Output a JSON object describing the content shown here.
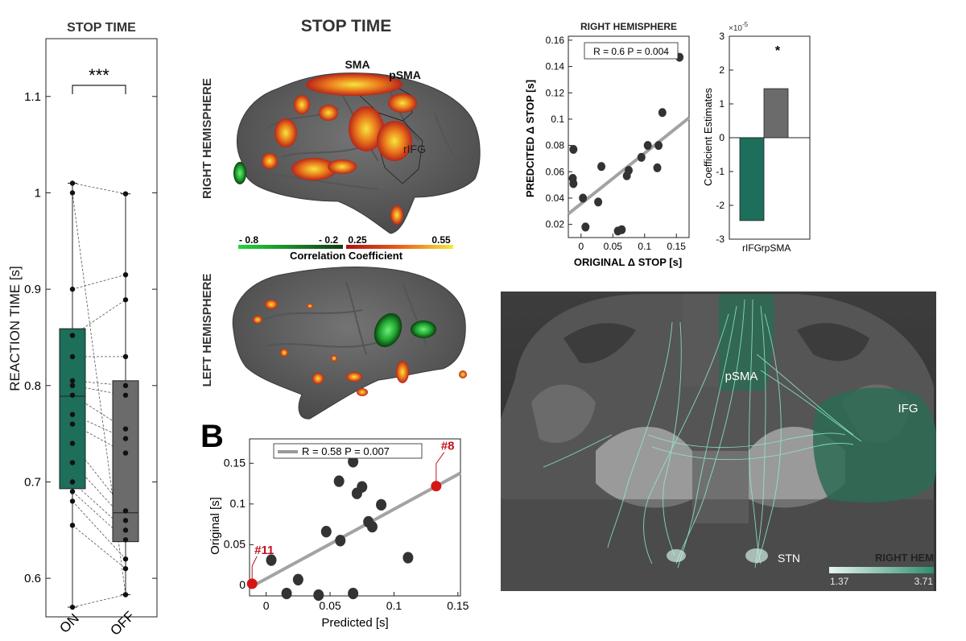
{
  "panelA": {
    "title": "STOP TIME",
    "ylabel": "REACTION TIME [s]",
    "significance": "***",
    "chart_data": {
      "type": "box",
      "title": "STOP TIME",
      "ylabel": "REACTION TIME [s]",
      "ylim": [
        0.56,
        1.16
      ],
      "yticks": [
        0.6,
        0.7,
        0.8,
        0.9,
        1,
        1.1
      ],
      "ytick_labels": [
        "0.6",
        "0.7",
        "0.8",
        "0.9",
        "1",
        "1.1"
      ],
      "categories": [
        "ON",
        "OFF"
      ],
      "colors": [
        "#1d6e5a",
        "#6b6b6b"
      ],
      "boxes": [
        {
          "name": "ON",
          "whisker_low": 0.57,
          "q1": 0.693,
          "median": 0.789,
          "q3": 0.859,
          "whisker_high": 1.01
        },
        {
          "name": "OFF",
          "whisker_low": 0.583,
          "q1": 0.638,
          "median": 0.668,
          "q3": 0.805,
          "whisker_high": 0.999
        }
      ],
      "paired_points": [
        [
          1.01,
          0.999
        ],
        [
          1.0,
          0.583
        ],
        [
          0.9,
          0.915
        ],
        [
          0.852,
          0.889
        ],
        [
          0.83,
          0.83
        ],
        [
          0.805,
          0.8
        ],
        [
          0.8,
          0.79
        ],
        [
          0.79,
          0.755
        ],
        [
          0.77,
          0.745
        ],
        [
          0.76,
          0.73
        ],
        [
          0.74,
          0.67
        ],
        [
          0.72,
          0.66
        ],
        [
          0.7,
          0.65
        ],
        [
          0.69,
          0.64
        ],
        [
          0.68,
          0.62
        ],
        [
          0.655,
          0.61
        ],
        [
          0.57,
          0.583
        ]
      ]
    }
  },
  "brain": {
    "title": "STOP TIME",
    "right_label": "RIGHT HEMISPHERE",
    "left_label": "LEFT HEMISPHERE",
    "labels": [
      "SMA",
      "pSMA",
      "rIFG"
    ],
    "colorbar": {
      "tick_labels": [
        "- 0.8",
        "- 0.2",
        "0.25",
        "0.55"
      ],
      "title": "Correlation Coefficient"
    }
  },
  "panelB": {
    "letter": "B",
    "chart_data": {
      "type": "scatter",
      "xlabel": "Predicted [s]",
      "ylabel": "Original [s]",
      "xlim": [
        -0.013,
        0.152
      ],
      "ylim": [
        -0.013,
        0.18
      ],
      "xticks": [
        0,
        0.05,
        0.1,
        0.15
      ],
      "xtick_labels": [
        "0",
        "0.05",
        "0.1",
        "0.15"
      ],
      "yticks": [
        0,
        0.05,
        0.1,
        0.15
      ],
      "ytick_labels": [
        "0",
        "0.05",
        "0.1",
        "0.15"
      ],
      "legend": "R = 0.58 P = 0.007",
      "fit_line": {
        "x": [
          -0.013,
          0.152
        ],
        "y": [
          -0.003,
          0.138
        ]
      },
      "points": [
        [
          0.004,
          0.031
        ],
        [
          0.016,
          -0.01
        ],
        [
          0.025,
          0.007
        ],
        [
          0.041,
          -0.012
        ],
        [
          0.047,
          0.066
        ],
        [
          0.057,
          0.128
        ],
        [
          0.058,
          0.055
        ],
        [
          0.068,
          0.152
        ],
        [
          0.071,
          0.113
        ],
        [
          0.075,
          0.121
        ],
        [
          0.08,
          0.078
        ],
        [
          0.083,
          0.072
        ],
        [
          0.09,
          0.099
        ],
        [
          0.068,
          -0.01
        ],
        [
          0.111,
          0.034
        ]
      ],
      "highlighted": [
        {
          "label": "#8",
          "x": 0.133,
          "y": 0.122
        },
        {
          "label": "#11",
          "x": -0.011,
          "y": 0.002
        }
      ]
    }
  },
  "scatterRH": {
    "title": "RIGHT HEMISPHERE",
    "chart_data": {
      "type": "scatter",
      "title": "RIGHT HEMISPHERE",
      "xlabel": "ORIGINAL Δ STOP [s]",
      "ylabel": "PREDCITED Δ STOP [s]",
      "xlim": [
        -0.02,
        0.17
      ],
      "ylim": [
        0.01,
        0.163
      ],
      "xticks": [
        0,
        0.05,
        0.1,
        0.15
      ],
      "xtick_labels": [
        "0",
        "0.05",
        "0.1",
        "0.15"
      ],
      "yticks": [
        0.02,
        0.04,
        0.06,
        0.08,
        0.1,
        0.12,
        0.14,
        0.16
      ],
      "ytick_labels": [
        "0.02",
        "0.04",
        "0.06",
        "0.08",
        "0.1",
        "0.12",
        "0.14",
        "0.16"
      ],
      "legend": "R = 0.6 P = 0.004",
      "fit_line": {
        "x": [
          -0.02,
          0.17
        ],
        "y": [
          0.028,
          0.101
        ]
      },
      "points": [
        [
          -0.012,
          0.077
        ],
        [
          -0.013,
          0.055
        ],
        [
          -0.012,
          0.051
        ],
        [
          0.003,
          0.04
        ],
        [
          0.007,
          0.018
        ],
        [
          0.027,
          0.037
        ],
        [
          0.032,
          0.064
        ],
        [
          0.058,
          0.015
        ],
        [
          0.064,
          0.016
        ],
        [
          0.072,
          0.057
        ],
        [
          0.075,
          0.061
        ],
        [
          0.095,
          0.071
        ],
        [
          0.105,
          0.08
        ],
        [
          0.122,
          0.08
        ],
        [
          0.12,
          0.063
        ],
        [
          0.128,
          0.105
        ],
        [
          0.155,
          0.147
        ]
      ]
    }
  },
  "coefBar": {
    "chart_data": {
      "type": "bar",
      "ylabel": "Coefficient Estimates",
      "exponent": "×10",
      "exponent_power": "-5",
      "categories": [
        "rIFG",
        "rpSMA"
      ],
      "values": [
        -2.45,
        1.45
      ],
      "colors": [
        "#1d6e5a",
        "#6b6b6b"
      ],
      "ylim": [
        -3,
        3
      ],
      "yticks": [
        -3,
        -2,
        -1,
        0,
        1,
        2,
        3
      ],
      "ytick_labels": [
        "-3",
        "-2",
        "-1",
        "0",
        "1",
        "2",
        "3"
      ],
      "significance": "*"
    }
  },
  "tract": {
    "labels": [
      "pSMA",
      "IFG",
      "STN"
    ],
    "legend_title": "RIGHT HEM",
    "range_labels": [
      "1.37",
      "3.71"
    ]
  }
}
